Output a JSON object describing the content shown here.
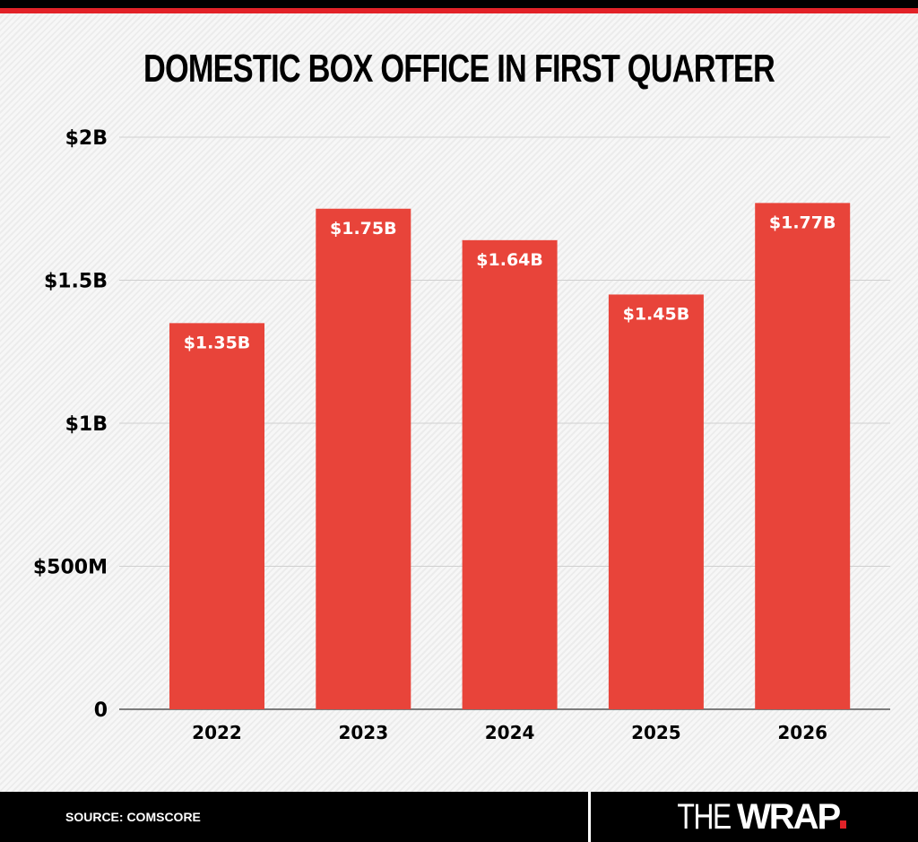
{
  "chart_data": {
    "type": "bar",
    "title": "DOMESTIC BOX OFFICE IN FIRST QUARTER",
    "categories": [
      "2022",
      "2023",
      "2024",
      "2025",
      "2026"
    ],
    "values": [
      1.35,
      1.75,
      1.64,
      1.45,
      1.77
    ],
    "data_labels": [
      "$1.35B",
      "$1.75B",
      "$1.64B",
      "$1.45B",
      "$1.77B"
    ],
    "yticks": [
      0,
      0.5,
      1,
      1.5,
      2
    ],
    "ytick_labels": [
      "0",
      "$500M",
      "$1B",
      "$1.5B",
      "$2B"
    ],
    "ylim": [
      0,
      2
    ],
    "unit": "billions USD",
    "grid": true,
    "bar_color": "#e8443a"
  },
  "footer": {
    "source": "SOURCE: COMSCORE",
    "logo_light": "THE",
    "logo_bold": "WRAP"
  }
}
